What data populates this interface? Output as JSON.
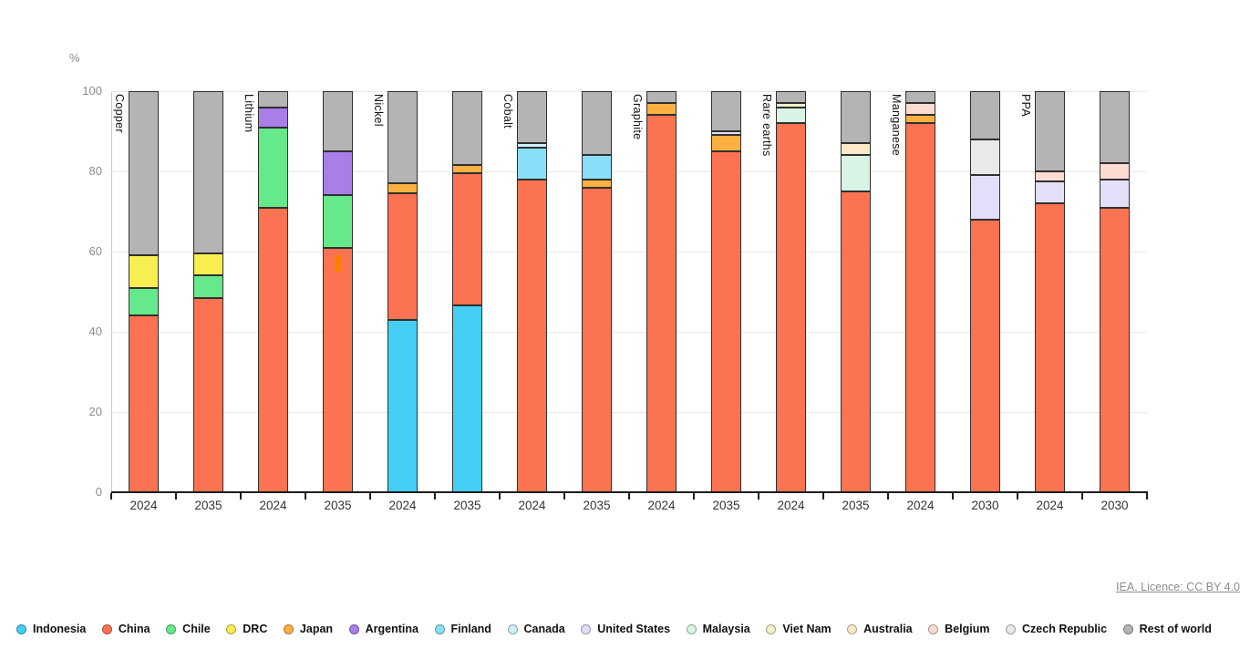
{
  "header": {
    "unit_label": "%"
  },
  "footer": {
    "licence_text": "IEA. Licence: CC BY 4.0"
  },
  "chart_data": {
    "type": "bar",
    "stacked": true,
    "unit": "%",
    "title": "",
    "xlabel": "",
    "ylabel": "%",
    "ylim": [
      0,
      100
    ],
    "yticks": [
      0,
      20,
      40,
      60,
      80,
      100
    ],
    "grid": true,
    "legend_position": "bottom",
    "legend": [
      {
        "name": "Indonesia",
        "color": "#45CFF5"
      },
      {
        "name": "China",
        "color": "#FB7350"
      },
      {
        "name": "Chile",
        "color": "#66E98A"
      },
      {
        "name": "DRC",
        "color": "#F9EE50"
      },
      {
        "name": "Japan",
        "color": "#FBB042"
      },
      {
        "name": "Argentina",
        "color": "#A87EE9"
      },
      {
        "name": "Finland",
        "color": "#89DFF7"
      },
      {
        "name": "Canada",
        "color": "#CEF0FA"
      },
      {
        "name": "United States",
        "color": "#E5DEF8"
      },
      {
        "name": "Malaysia",
        "color": "#D9F4E4"
      },
      {
        "name": "Viet Nam",
        "color": "#F1F0C9"
      },
      {
        "name": "Australia",
        "color": "#FBE9C8"
      },
      {
        "name": "Belgium",
        "color": "#FCDCD2"
      },
      {
        "name": "Czech Republic",
        "color": "#E9E9E9"
      },
      {
        "name": "Rest of world",
        "color": "#B4B4B4"
      }
    ],
    "groups": [
      {
        "label": "Copper",
        "bars": [
          {
            "x": "2024",
            "segments": [
              {
                "name": "China",
                "value": 44
              },
              {
                "name": "Chile",
                "value": 7
              },
              {
                "name": "DRC",
                "value": 8
              },
              {
                "name": "Rest of world",
                "value": 41
              }
            ]
          },
          {
            "x": "2035",
            "segments": [
              {
                "name": "China",
                "value": 48.5
              },
              {
                "name": "Chile",
                "value": 5.5
              },
              {
                "name": "DRC",
                "value": 5.5
              },
              {
                "name": "Rest of world",
                "value": 40.5
              }
            ]
          }
        ]
      },
      {
        "label": "Lithium",
        "bars": [
          {
            "x": "2024",
            "segments": [
              {
                "name": "China",
                "value": 71
              },
              {
                "name": "Chile",
                "value": 20
              },
              {
                "name": "Argentina",
                "value": 5
              },
              {
                "name": "Rest of world",
                "value": 4
              }
            ]
          },
          {
            "x": "2035",
            "segments": [
              {
                "name": "China",
                "value": 61
              },
              {
                "name": "Chile",
                "value": 13
              },
              {
                "name": "Argentina",
                "value": 11
              },
              {
                "name": "Rest of world",
                "value": 15
              }
            ],
            "overlay": {
              "name": "Japan",
              "from": 55,
              "to": 59,
              "color": "#FB8000"
            }
          }
        ]
      },
      {
        "label": "Nickel",
        "bars": [
          {
            "x": "2024",
            "segments": [
              {
                "name": "Indonesia",
                "value": 43
              },
              {
                "name": "China",
                "value": 31.5
              },
              {
                "name": "Japan",
                "value": 2.5
              },
              {
                "name": "Rest of world",
                "value": 23
              }
            ]
          },
          {
            "x": "2035",
            "segments": [
              {
                "name": "Indonesia",
                "value": 46.5
              },
              {
                "name": "China",
                "value": 33
              },
              {
                "name": "Japan",
                "value": 2
              },
              {
                "name": "Rest of world",
                "value": 18.5
              }
            ]
          }
        ]
      },
      {
        "label": "Cobalt",
        "bars": [
          {
            "x": "2024",
            "segments": [
              {
                "name": "China",
                "value": 78
              },
              {
                "name": "Finland",
                "value": 8
              },
              {
                "name": "Canada",
                "value": 1
              },
              {
                "name": "Rest of world",
                "value": 13
              }
            ]
          },
          {
            "x": "2035",
            "segments": [
              {
                "name": "China",
                "value": 76
              },
              {
                "name": "Japan",
                "value": 2
              },
              {
                "name": "Finland",
                "value": 6
              },
              {
                "name": "Rest of world",
                "value": 16
              }
            ]
          }
        ]
      },
      {
        "label": "Graphite",
        "bars": [
          {
            "x": "2024",
            "segments": [
              {
                "name": "China",
                "value": 94
              },
              {
                "name": "Japan",
                "value": 3
              },
              {
                "name": "Rest of world",
                "value": 3
              }
            ]
          },
          {
            "x": "2035",
            "segments": [
              {
                "name": "China",
                "value": 85
              },
              {
                "name": "Japan",
                "value": 4
              },
              {
                "name": "United States",
                "value": 1
              },
              {
                "name": "Rest of world",
                "value": 10
              }
            ]
          }
        ]
      },
      {
        "label": "Rare earths",
        "bars": [
          {
            "x": "2024",
            "segments": [
              {
                "name": "China",
                "value": 92
              },
              {
                "name": "Malaysia",
                "value": 4
              },
              {
                "name": "Viet Nam",
                "value": 1
              },
              {
                "name": "Rest of world",
                "value": 3
              }
            ]
          },
          {
            "x": "2035",
            "segments": [
              {
                "name": "China",
                "value": 75
              },
              {
                "name": "Malaysia",
                "value": 9
              },
              {
                "name": "Australia",
                "value": 3
              },
              {
                "name": "Rest of world",
                "value": 13
              }
            ]
          }
        ]
      },
      {
        "label": "Manganese",
        "bars": [
          {
            "x": "2024",
            "segments": [
              {
                "name": "China",
                "value": 92
              },
              {
                "name": "Japan",
                "value": 2
              },
              {
                "name": "Belgium",
                "value": 3
              },
              {
                "name": "Rest of world",
                "value": 3
              }
            ]
          },
          {
            "x": "2030",
            "segments": [
              {
                "name": "China",
                "value": 68
              },
              {
                "name": "United States",
                "value": 11
              },
              {
                "name": "Czech Republic",
                "value": 9
              },
              {
                "name": "Rest of world",
                "value": 12
              }
            ]
          }
        ]
      },
      {
        "label": "PPA",
        "bars": [
          {
            "x": "2024",
            "segments": [
              {
                "name": "China",
                "value": 72
              },
              {
                "name": "United States",
                "value": 5.5
              },
              {
                "name": "Belgium",
                "value": 2.5
              },
              {
                "name": "Rest of world",
                "value": 20
              }
            ]
          },
          {
            "x": "2030",
            "segments": [
              {
                "name": "China",
                "value": 71
              },
              {
                "name": "United States",
                "value": 7
              },
              {
                "name": "Belgium",
                "value": 4
              },
              {
                "name": "Rest of world",
                "value": 18
              }
            ]
          }
        ]
      }
    ]
  }
}
